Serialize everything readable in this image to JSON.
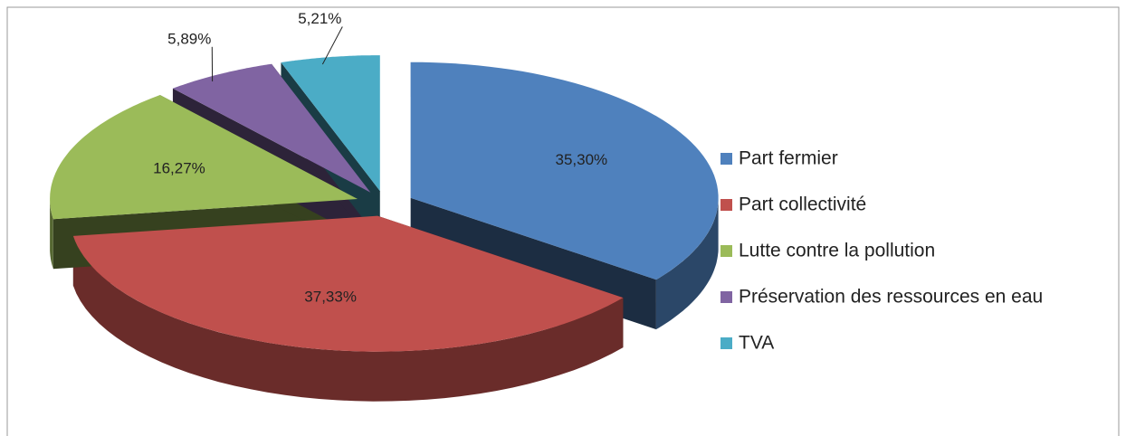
{
  "chart_data": {
    "type": "pie",
    "categories": [
      "Part fermier",
      "Part collectivité",
      "Lutte contre la pollution",
      "Préservation des ressources en eau",
      "TVA"
    ],
    "values": [
      35.3,
      37.33,
      16.27,
      5.89,
      5.21
    ],
    "value_labels": [
      "35,30%",
      "37,33%",
      "16,27%",
      "5,89%",
      "5,21%"
    ],
    "colors": [
      "#4f81bd",
      "#c0504d",
      "#9bbb59",
      "#8064a2",
      "#4bacc6"
    ],
    "legend": "right"
  }
}
